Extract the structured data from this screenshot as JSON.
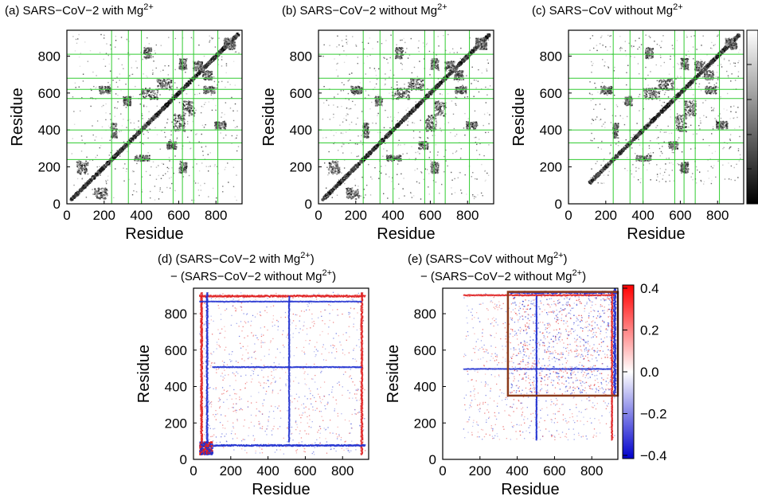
{
  "figure": {
    "panels": [
      {
        "id": "a",
        "title": "(a) SARS−CoV−2 with Mg",
        "title_sup": "2+"
      },
      {
        "id": "b",
        "title": "(b) SARS−CoV−2 without Mg",
        "title_sup": "2+"
      },
      {
        "id": "c",
        "title": "(c) SARS−CoV without Mg",
        "title_sup": "2+"
      },
      {
        "id": "d",
        "title_l1": "(d) (SARS−CoV−2 with Mg",
        "title_l1_sup": "2+",
        "title_l1_end": ")",
        "title_l2": "− (SARS−CoV−2 without Mg",
        "title_l2_sup": "2+",
        "title_l2_end": ")"
      },
      {
        "id": "e",
        "title_l1": "(e) (SARS−CoV without Mg",
        "title_l1_sup": "2+",
        "title_l1_end": ")",
        "title_l2": "− (SARS−CoV−2 without Mg",
        "title_l2_sup": "2+",
        "title_l2_end": ")"
      }
    ]
  },
  "chart_data": [
    {
      "type": "heatmap",
      "panel": "a",
      "xlabel": "Residue",
      "ylabel": "Residue",
      "xticks": [
        0,
        200,
        400,
        600,
        800
      ],
      "yticks": [
        0,
        200,
        400,
        600,
        800
      ],
      "xlim": [
        0,
        940
      ],
      "ylim": [
        0,
        940
      ],
      "domain_lines": [
        240,
        330,
        400,
        570,
        620,
        680,
        810
      ]
    },
    {
      "type": "heatmap",
      "panel": "b",
      "xlabel": "Residue",
      "ylabel": "Residue",
      "xticks": [
        0,
        200,
        400,
        600,
        800
      ],
      "yticks": [
        0,
        200,
        400,
        600,
        800
      ],
      "xlim": [
        0,
        940
      ],
      "ylim": [
        0,
        940
      ],
      "domain_lines": [
        240,
        330,
        400,
        570,
        620,
        680,
        810
      ]
    },
    {
      "type": "heatmap",
      "panel": "c",
      "xlabel": "Residue",
      "ylabel": "Residue",
      "xticks": [
        0,
        200,
        400,
        600,
        800
      ],
      "yticks": [
        0,
        200,
        400,
        600,
        800
      ],
      "xlim": [
        0,
        940
      ],
      "ylim": [
        0,
        940
      ],
      "domain_lines": [
        240,
        330,
        400,
        570,
        620,
        680,
        810
      ]
    },
    {
      "type": "heatmap",
      "panel": "d",
      "xlabel": "Residue",
      "ylabel": "Residue",
      "xticks": [
        0,
        200,
        400,
        600,
        800
      ],
      "yticks": [
        0,
        200,
        400,
        600,
        800
      ],
      "xlim": [
        0,
        940
      ],
      "ylim": [
        0,
        940
      ]
    },
    {
      "type": "heatmap",
      "panel": "e",
      "xlabel": "Residue",
      "ylabel": "Residue",
      "xticks": [
        0,
        200,
        400,
        600,
        800
      ],
      "yticks": [
        0,
        200,
        400,
        600,
        800
      ],
      "xlim": [
        0,
        940
      ],
      "ylim": [
        0,
        940
      ],
      "highlight_box": {
        "x": [
          350,
          940
        ],
        "y": [
          350,
          920
        ],
        "color": "#8b3a1a"
      }
    },
    {
      "type": "colorbar",
      "panel": "e",
      "range": [
        -0.4,
        0.4
      ],
      "ticks": [
        "0.4",
        "0.2",
        "0.0",
        "−0.2",
        "−0.4"
      ],
      "colors": [
        "#0000cc",
        "#ffffff",
        "#ff0000"
      ]
    }
  ],
  "colors": {
    "domain_line": "#33cc33",
    "box": "#8b3a1a",
    "pos": "#e02020",
    "neg": "#2030d0"
  }
}
